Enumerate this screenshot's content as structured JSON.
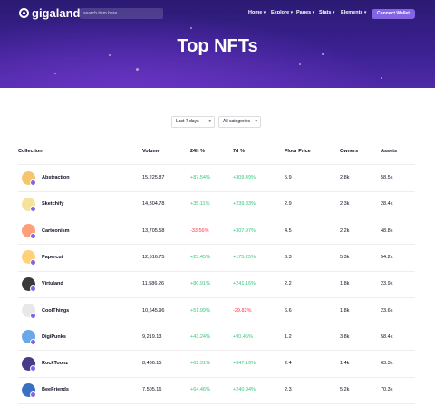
{
  "header": {
    "logo": "gigaland",
    "search_placeholder": "search item here...",
    "nav": [
      "Home",
      "Explore",
      "Pages",
      "Stats",
      "Elements"
    ],
    "button": "Connect Wallet"
  },
  "hero": {
    "title": "Top NFTs"
  },
  "filters": [
    "Last 7 days",
    "All categories"
  ],
  "table": {
    "columns": [
      "Collection",
      "Volume",
      "24h %",
      "7d %",
      "Floor Price",
      "Owners",
      "Assets"
    ],
    "rows": [
      [
        "Abstraction",
        "15,225.87",
        "+87.54%",
        "+309.49%",
        "5.9",
        "2.8k",
        "58.5k"
      ],
      [
        "Sketchify",
        "14,304.78",
        "+35.11%",
        "+239.83%",
        "2.9",
        "2.3k",
        "28.4k"
      ],
      [
        "Cartoonism",
        "13,705.58",
        "-33.56%",
        "+307.97%",
        "4.5",
        "2.2k",
        "48.8k"
      ],
      [
        "Papercut",
        "12,516.75",
        "+23.45%",
        "+175.25%",
        "6.3",
        "5.3k",
        "54.2k"
      ],
      [
        "Virtuland",
        "11,586.26",
        "+80.91%",
        "+241.16%",
        "2.2",
        "1.8k",
        "23.9k"
      ],
      [
        "CoolThings",
        "10,645.96",
        "+51.99%",
        "-29.82%",
        "6.6",
        "1.8k",
        "23.6k"
      ],
      [
        "DigiPunks",
        "9,219.13",
        "+43.24%",
        "+90.45%",
        "1.2",
        "3.8k",
        "58.4k"
      ],
      [
        "RockToonz",
        "8,436.15",
        "+61.31%",
        "+347.19%",
        "2.4",
        "1.4k",
        "63.3k"
      ],
      [
        "BeeFriends",
        "7,505.16",
        "+64.46%",
        "+240.94%",
        "2.3",
        "5.2k",
        "70.3k"
      ]
    ]
  }
}
